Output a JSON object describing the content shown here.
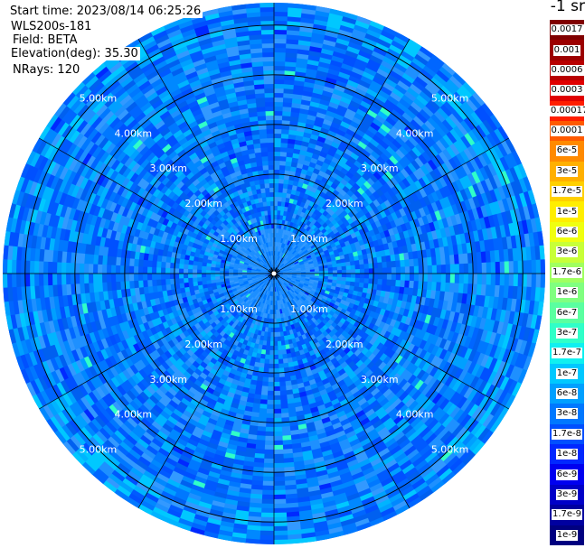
{
  "header": {
    "start_time": "Start time: 2023/08/14 06:25:26",
    "instrument": "WLS200s-181",
    "field": "Field: BETA",
    "elevation": "Elevation(deg): 35.30",
    "nrays": "NRays: 120"
  },
  "chart_data": {
    "type": "heatmap",
    "projection": "polar (PPI scan)",
    "field": "BETA",
    "elevation_deg": 35.3,
    "n_rays": 120,
    "range_rings_km": [
      1.0,
      2.0,
      3.0,
      4.0,
      5.0
    ],
    "ring_labels": [
      "1.00km",
      "2.00km",
      "3.00km",
      "4.00km",
      "5.00km"
    ],
    "max_range_km": 5.45,
    "spokes_deg": [
      0,
      30,
      60,
      90,
      120,
      150,
      180,
      210,
      240,
      270,
      300,
      330
    ],
    "grid": true,
    "dominant_range": "1.7e-8 to 1e-7",
    "colorbar": {
      "unit_label": "-1 sr",
      "tick_labels": [
        "0.0017",
        "0.001",
        "0.0006",
        "0.0003",
        "0.00017",
        "0.0001",
        "6e-5",
        "3e-5",
        "1.7e-5",
        "1e-5",
        "6e-6",
        "3e-6",
        "1.7e-6",
        "1e-6",
        "6e-7",
        "3e-7",
        "1.7e-7",
        "1e-7",
        "6e-8",
        "3e-8",
        "1.7e-8",
        "1e-8",
        "6e-9",
        "3e-9",
        "1.7e-9",
        "1e-9"
      ],
      "colors": [
        "#800000",
        "#9c0000",
        "#b80000",
        "#e00000",
        "#ff1e00",
        "#ff5a00",
        "#ff8a00",
        "#ffb000",
        "#ffd000",
        "#ffee00",
        "#f0ff10",
        "#c8ff38",
        "#a0ff60",
        "#80ff80",
        "#5affa0",
        "#30ffc8",
        "#10f0f0",
        "#00c8ff",
        "#00a0ff",
        "#0078ff",
        "#0050ff",
        "#0028ff",
        "#0000f0",
        "#0000c8",
        "#0000a0",
        "#000080"
      ]
    }
  }
}
